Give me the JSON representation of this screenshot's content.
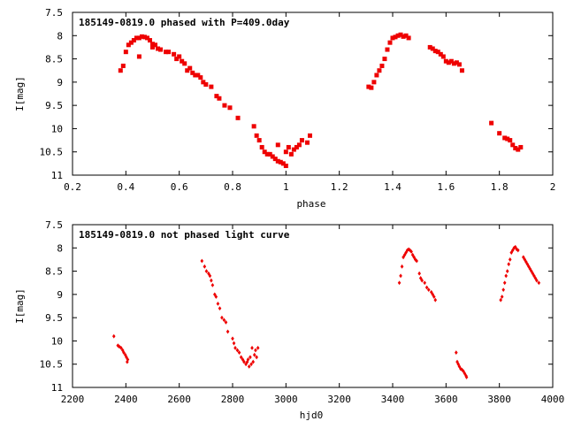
{
  "chart_data": [
    {
      "type": "scatter",
      "title": "185149-0819.0 phased with P=409.0day",
      "xlabel": "phase",
      "ylabel": "I[mag]",
      "xlim": [
        0.2,
        2.0
      ],
      "ylim": [
        7.5,
        11.0
      ],
      "y_inverted": true,
      "grid": false,
      "marker": "square",
      "color": "#ee0000",
      "x_ticks": [
        "0.2",
        "0.4",
        "0.6",
        "0.8",
        "1",
        "1.2",
        "1.4",
        "1.6",
        "1.8",
        "2"
      ],
      "y_ticks": [
        "7.5",
        "8",
        "8.5",
        "9",
        "9.5",
        "10",
        "10.5",
        "11"
      ],
      "x": [
        0.38,
        0.39,
        0.4,
        0.41,
        0.42,
        0.43,
        0.44,
        0.45,
        0.46,
        0.47,
        0.48,
        0.49,
        0.5,
        0.5,
        0.51,
        0.52,
        0.53,
        0.55,
        0.56,
        0.58,
        0.59,
        0.6,
        0.61,
        0.62,
        0.63,
        0.64,
        0.65,
        0.66,
        0.67,
        0.68,
        0.69,
        0.7,
        0.72,
        0.74,
        0.75,
        0.77,
        0.79,
        0.82,
        0.88,
        0.89,
        0.9,
        0.91,
        0.92,
        0.93,
        0.94,
        0.95,
        0.96,
        0.97,
        0.98,
        0.99,
        1.0,
        1.01,
        1.02,
        1.03,
        1.04,
        1.05,
        1.06,
        1.08,
        1.09,
        1.31,
        1.32,
        1.33,
        1.34,
        1.35,
        1.36,
        1.37,
        1.38,
        1.39,
        1.4,
        1.41,
        1.42,
        1.43,
        1.44,
        1.45,
        1.46,
        1.54,
        1.55,
        1.56,
        1.57,
        1.58,
        1.59,
        1.6,
        1.61,
        1.62,
        1.63,
        1.64,
        1.65,
        1.66,
        1.77,
        1.8,
        1.82,
        1.83,
        1.84,
        1.85,
        1.86,
        1.87,
        1.88,
        0.45,
        0.97,
        1.0
      ],
      "y": [
        8.75,
        8.65,
        8.35,
        8.2,
        8.15,
        8.1,
        8.05,
        8.05,
        8.02,
        8.03,
        8.05,
        8.1,
        8.18,
        8.25,
        8.2,
        8.28,
        8.3,
        8.35,
        8.35,
        8.4,
        8.5,
        8.45,
        8.55,
        8.6,
        8.75,
        8.7,
        8.8,
        8.85,
        8.85,
        8.9,
        9.0,
        9.05,
        9.1,
        9.3,
        9.35,
        9.5,
        9.55,
        9.77,
        9.95,
        10.15,
        10.25,
        10.4,
        10.5,
        10.55,
        10.55,
        10.6,
        10.65,
        10.7,
        10.72,
        10.75,
        10.5,
        10.4,
        10.55,
        10.45,
        10.4,
        10.35,
        10.25,
        10.3,
        10.15,
        9.1,
        9.12,
        9.0,
        8.85,
        8.75,
        8.65,
        8.5,
        8.3,
        8.15,
        8.05,
        8.03,
        8.0,
        7.98,
        8.02,
        8.0,
        8.05,
        8.25,
        8.28,
        8.33,
        8.35,
        8.4,
        8.45,
        8.55,
        8.58,
        8.55,
        8.6,
        8.58,
        8.62,
        8.75,
        9.88,
        10.1,
        10.2,
        10.22,
        10.25,
        10.35,
        10.42,
        10.45,
        10.4,
        8.45,
        10.35,
        10.8
      ]
    },
    {
      "type": "scatter",
      "title": "185149-0819.0 not phased light curve",
      "xlabel": "hjd0",
      "ylabel": "I[mag]",
      "xlim": [
        2200,
        4000
      ],
      "ylim": [
        7.5,
        11.0
      ],
      "y_inverted": true,
      "grid": false,
      "marker": "diamond",
      "color": "#ee0000",
      "x_ticks": [
        "2200",
        "2400",
        "2600",
        "2800",
        "3000",
        "3200",
        "3400",
        "3600",
        "3800",
        "4000"
      ],
      "y_ticks": [
        "7.5",
        "8",
        "8.5",
        "9",
        "9.5",
        "10",
        "10.5",
        "11"
      ],
      "x": [
        2355,
        2370,
        2375,
        2382,
        2388,
        2392,
        2398,
        2402,
        2405,
        2407,
        2685,
        2695,
        2702,
        2710,
        2715,
        2720,
        2725,
        2733,
        2738,
        2745,
        2752,
        2760,
        2768,
        2775,
        2782,
        2800,
        2805,
        2810,
        2818,
        2825,
        2832,
        2838,
        2843,
        2850,
        2855,
        2858,
        2862,
        2866,
        2870,
        2873,
        2877,
        2882,
        2886,
        2890,
        2895,
        3425,
        3430,
        3435,
        3440,
        3445,
        3450,
        3455,
        3460,
        3465,
        3470,
        3475,
        3480,
        3485,
        3490,
        3500,
        3505,
        3510,
        3520,
        3528,
        3535,
        3545,
        3550,
        3555,
        3560,
        3638,
        3642,
        3646,
        3650,
        3655,
        3660,
        3665,
        3670,
        3675,
        3677,
        3805,
        3810,
        3815,
        3820,
        3825,
        3830,
        3835,
        3840,
        3845,
        3850,
        3855,
        3860,
        3865,
        3870,
        3890,
        3895,
        3900,
        3905,
        3910,
        3915,
        3920,
        3925,
        3930,
        3935,
        3940,
        3948
      ],
      "y": [
        9.9,
        10.1,
        10.12,
        10.15,
        10.2,
        10.25,
        10.3,
        10.35,
        10.45,
        10.4,
        8.28,
        8.4,
        8.5,
        8.55,
        8.6,
        8.7,
        8.8,
        9.0,
        9.05,
        9.2,
        9.3,
        9.5,
        9.55,
        9.6,
        9.8,
        9.95,
        10.05,
        10.15,
        10.2,
        10.25,
        10.35,
        10.4,
        10.45,
        10.5,
        10.45,
        10.4,
        10.55,
        10.35,
        10.5,
        10.15,
        10.45,
        10.3,
        10.2,
        10.35,
        10.15,
        8.75,
        8.6,
        8.4,
        8.2,
        8.15,
        8.1,
        8.05,
        8.03,
        8.05,
        8.08,
        8.15,
        8.2,
        8.25,
        8.28,
        8.55,
        8.65,
        8.7,
        8.75,
        8.85,
        8.9,
        8.95,
        9.0,
        9.05,
        9.12,
        10.25,
        10.45,
        10.5,
        10.55,
        10.6,
        10.62,
        10.65,
        10.7,
        10.75,
        10.78,
        9.12,
        9.05,
        8.9,
        8.75,
        8.6,
        8.5,
        8.35,
        8.25,
        8.1,
        8.05,
        8.0,
        7.98,
        8.03,
        8.05,
        8.2,
        8.25,
        8.3,
        8.35,
        8.4,
        8.45,
        8.5,
        8.55,
        8.6,
        8.65,
        8.7,
        8.75
      ]
    }
  ]
}
